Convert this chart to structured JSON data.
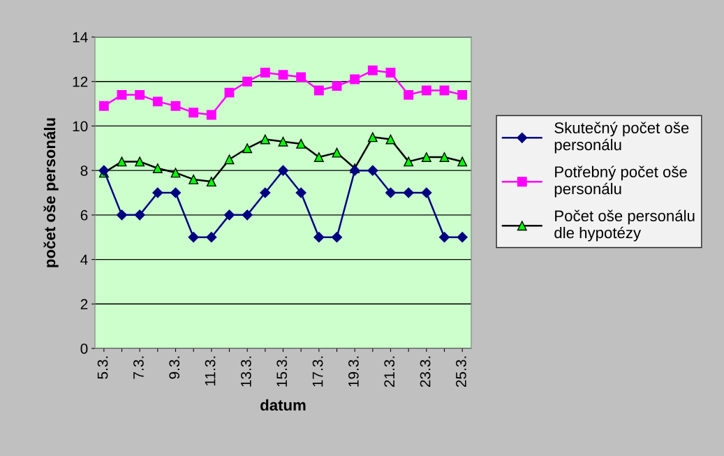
{
  "chart_data": {
    "type": "line",
    "xlabel": "datum",
    "ylabel": "počet oše personálu",
    "categories": [
      "5.3.",
      null,
      "7.3.",
      null,
      "9.3.",
      null,
      "11.3.",
      null,
      "13.3.",
      null,
      "15.3.",
      null,
      "17.3.",
      null,
      "19.3.",
      null,
      "21.3.",
      null,
      "23.3.",
      null,
      "25.3."
    ],
    "series": [
      {
        "name": "Skutečný počet oše\npersonálu",
        "color": "#000080",
        "marker": "diamond",
        "values": [
          8,
          6,
          6,
          7,
          7,
          5,
          5,
          6,
          6,
          7,
          8,
          7,
          5,
          5,
          8,
          8,
          7,
          7,
          7,
          5,
          5
        ]
      },
      {
        "name": "Potřebný počet oše\npersonálu",
        "color": "#ff00ff",
        "marker": "square",
        "values": [
          10.9,
          11.4,
          11.4,
          11.1,
          10.9,
          10.6,
          10.5,
          11.5,
          12.0,
          12.4,
          12.3,
          12.2,
          11.6,
          11.8,
          12.1,
          12.5,
          12.4,
          11.4,
          11.6,
          11.6,
          11.4
        ]
      },
      {
        "name": "Počet oše personálu\ndle hypotézy",
        "color": "#000000",
        "marker": "triangle",
        "values": [
          7.9,
          8.4,
          8.4,
          8.1,
          7.9,
          7.6,
          7.5,
          8.5,
          9.0,
          9.4,
          9.3,
          9.2,
          8.6,
          8.8,
          8.1,
          9.5,
          9.4,
          8.4,
          8.6,
          8.6,
          8.4
        ]
      }
    ],
    "ylim": [
      0,
      14
    ],
    "yticks": [
      0,
      2,
      4,
      6,
      8,
      10,
      12,
      14
    ],
    "grid": "y",
    "legend": "right"
  }
}
